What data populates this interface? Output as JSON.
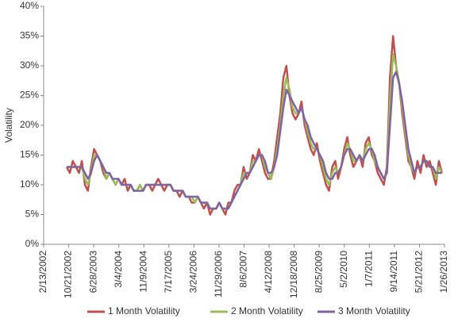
{
  "chart_data": {
    "type": "line",
    "y_label": "Volatility",
    "x": [
      "10/1/2002",
      "11/1/2002",
      "12/1/2002",
      "1/1/2003",
      "2/1/2003",
      "3/1/2003",
      "4/1/2003",
      "5/1/2003",
      "6/1/2003",
      "7/1/2003",
      "8/1/2003",
      "9/1/2003",
      "10/1/2003",
      "11/1/2003",
      "12/1/2003",
      "1/1/2004",
      "2/1/2004",
      "3/1/2004",
      "4/1/2004",
      "5/1/2004",
      "6/1/2004",
      "7/1/2004",
      "8/1/2004",
      "9/1/2004",
      "10/1/2004",
      "11/1/2004",
      "12/1/2004",
      "1/1/2005",
      "2/1/2005",
      "3/1/2005",
      "4/1/2005",
      "5/1/2005",
      "6/1/2005",
      "7/1/2005",
      "8/1/2005",
      "9/1/2005",
      "10/1/2005",
      "11/1/2005",
      "12/1/2005",
      "1/1/2006",
      "2/1/2006",
      "3/1/2006",
      "4/1/2006",
      "5/1/2006",
      "6/1/2006",
      "7/1/2006",
      "8/1/2006",
      "9/1/2006",
      "10/1/2006",
      "11/1/2006",
      "12/1/2006",
      "1/1/2007",
      "2/1/2007",
      "3/1/2007",
      "4/1/2007",
      "5/1/2007",
      "6/1/2007",
      "7/1/2007",
      "8/1/2007",
      "9/1/2007",
      "10/1/2007",
      "11/1/2007",
      "12/1/2007",
      "1/1/2008",
      "2/1/2008",
      "3/1/2008",
      "4/1/2008",
      "5/1/2008",
      "6/1/2008",
      "7/1/2008",
      "8/1/2008",
      "9/1/2008",
      "10/1/2008",
      "11/1/2008",
      "12/1/2008",
      "1/1/2009",
      "2/1/2009",
      "3/1/2009",
      "4/1/2009",
      "5/1/2009",
      "6/1/2009",
      "7/1/2009",
      "8/1/2009",
      "9/1/2009",
      "10/1/2009",
      "11/1/2009",
      "12/1/2009",
      "1/1/2010",
      "2/1/2010",
      "3/1/2010",
      "4/1/2010",
      "5/1/2010",
      "6/1/2010",
      "7/1/2010",
      "8/1/2010",
      "9/1/2010",
      "10/1/2010",
      "11/1/2010",
      "12/1/2010",
      "1/1/2011",
      "2/1/2011",
      "3/1/2011",
      "4/1/2011",
      "5/1/2011",
      "6/1/2011",
      "7/1/2011",
      "8/1/2011",
      "9/1/2011",
      "10/1/2011",
      "11/1/2011",
      "12/1/2011",
      "1/1/2012",
      "2/1/2012",
      "3/1/2012",
      "4/1/2012",
      "5/1/2012",
      "6/1/2012",
      "7/1/2012",
      "8/1/2012",
      "9/1/2012",
      "10/1/2012",
      "11/1/2012",
      "12/1/2012",
      "1/1/2013"
    ],
    "series": [
      {
        "name": "1 Month Volatility",
        "color": "#c0504d",
        "values": [
          13,
          12,
          14,
          13,
          12,
          14,
          10,
          9,
          13,
          16,
          15,
          14,
          12,
          11,
          12,
          11,
          10,
          11,
          10,
          11,
          9,
          10,
          9,
          9,
          10,
          9,
          10,
          10,
          9,
          10,
          11,
          10,
          9,
          10,
          10,
          9,
          9,
          8,
          9,
          8,
          8,
          7,
          7,
          8,
          7,
          6,
          7,
          5,
          6,
          6,
          7,
          6,
          5,
          7,
          7,
          9,
          10,
          10,
          13,
          11,
          12,
          15,
          14,
          16,
          14,
          12,
          11,
          11,
          14,
          18,
          22,
          28,
          30,
          25,
          22,
          21,
          22,
          24,
          20,
          18,
          16,
          15,
          17,
          14,
          12,
          10,
          9,
          13,
          14,
          11,
          13,
          16,
          18,
          15,
          13,
          14,
          15,
          13,
          17,
          18,
          15,
          14,
          12,
          11,
          10,
          13,
          28,
          35,
          30,
          27,
          22,
          18,
          14,
          13,
          11,
          14,
          12,
          15,
          13,
          14,
          12,
          10,
          14,
          12
        ]
      },
      {
        "name": "2 Month Volatility",
        "color": "#9bbb59",
        "values": [
          13,
          13,
          13,
          13,
          13,
          13,
          11,
          10,
          12,
          15,
          15,
          14,
          13,
          11,
          12,
          11,
          10,
          11,
          10,
          10,
          10,
          10,
          9,
          9,
          10,
          9,
          10,
          10,
          10,
          10,
          10,
          10,
          10,
          10,
          10,
          9,
          9,
          9,
          9,
          8,
          8,
          8,
          7,
          8,
          7,
          7,
          7,
          6,
          6,
          6,
          7,
          6,
          6,
          6,
          7,
          8,
          9,
          10,
          12,
          12,
          12,
          14,
          14,
          15,
          15,
          13,
          12,
          11,
          13,
          16,
          20,
          25,
          28,
          26,
          23,
          22,
          22,
          23,
          21,
          19,
          17,
          16,
          16,
          15,
          13,
          11,
          10,
          12,
          13,
          12,
          13,
          15,
          17,
          16,
          14,
          14,
          15,
          14,
          16,
          17,
          16,
          14,
          13,
          12,
          11,
          12,
          24,
          32,
          30,
          27,
          23,
          19,
          15,
          13,
          12,
          13,
          13,
          14,
          14,
          13,
          13,
          11,
          13,
          12
        ]
      },
      {
        "name": "3 Month Volatility",
        "color": "#8064a2",
        "values": [
          13,
          13,
          13,
          13,
          13,
          13,
          12,
          11,
          12,
          14,
          15,
          14,
          13,
          12,
          12,
          11,
          11,
          11,
          10,
          10,
          10,
          10,
          9,
          9,
          9,
          9,
          10,
          10,
          10,
          10,
          10,
          10,
          10,
          10,
          10,
          9,
          9,
          9,
          9,
          8,
          8,
          8,
          8,
          8,
          7,
          7,
          7,
          6,
          6,
          6,
          7,
          6,
          6,
          6,
          7,
          8,
          9,
          10,
          11,
          12,
          12,
          13,
          14,
          15,
          15,
          14,
          12,
          12,
          13,
          15,
          19,
          23,
          26,
          25,
          24,
          23,
          22,
          23,
          21,
          20,
          18,
          17,
          16,
          15,
          14,
          12,
          11,
          11,
          12,
          12,
          13,
          15,
          16,
          16,
          15,
          14,
          15,
          14,
          15,
          16,
          16,
          15,
          13,
          12,
          11,
          12,
          20,
          28,
          29,
          27,
          24,
          20,
          16,
          14,
          12,
          13,
          13,
          14,
          14,
          13,
          13,
          12,
          12,
          12
        ]
      }
    ],
    "xlim": [
      "2/13/2002",
      "1/26/2013"
    ],
    "xticks": [
      "2/13/2002",
      "10/21/2002",
      "6/28/2003",
      "3/4/2004",
      "11/9/2004",
      "7/17/2005",
      "3/24/2006",
      "11/29/2006",
      "8/6/2007",
      "4/12/2008",
      "12/18/2008",
      "8/25/2009",
      "5/2/2010",
      "1/7/2011",
      "9/14/2011",
      "5/21/2012",
      "1/26/2013"
    ],
    "ylim": [
      0,
      40
    ],
    "yticks": [
      {
        "value": 0,
        "label": "0%"
      },
      {
        "value": 5,
        "label": "5%"
      },
      {
        "value": 10,
        "label": "10%"
      },
      {
        "value": 15,
        "label": "15%"
      },
      {
        "value": 20,
        "label": "20%"
      },
      {
        "value": 25,
        "label": "25%"
      },
      {
        "value": 30,
        "label": "30%"
      },
      {
        "value": 35,
        "label": "35%"
      },
      {
        "value": 40,
        "label": "40%"
      }
    ],
    "grid": false,
    "legend": "bottom"
  }
}
